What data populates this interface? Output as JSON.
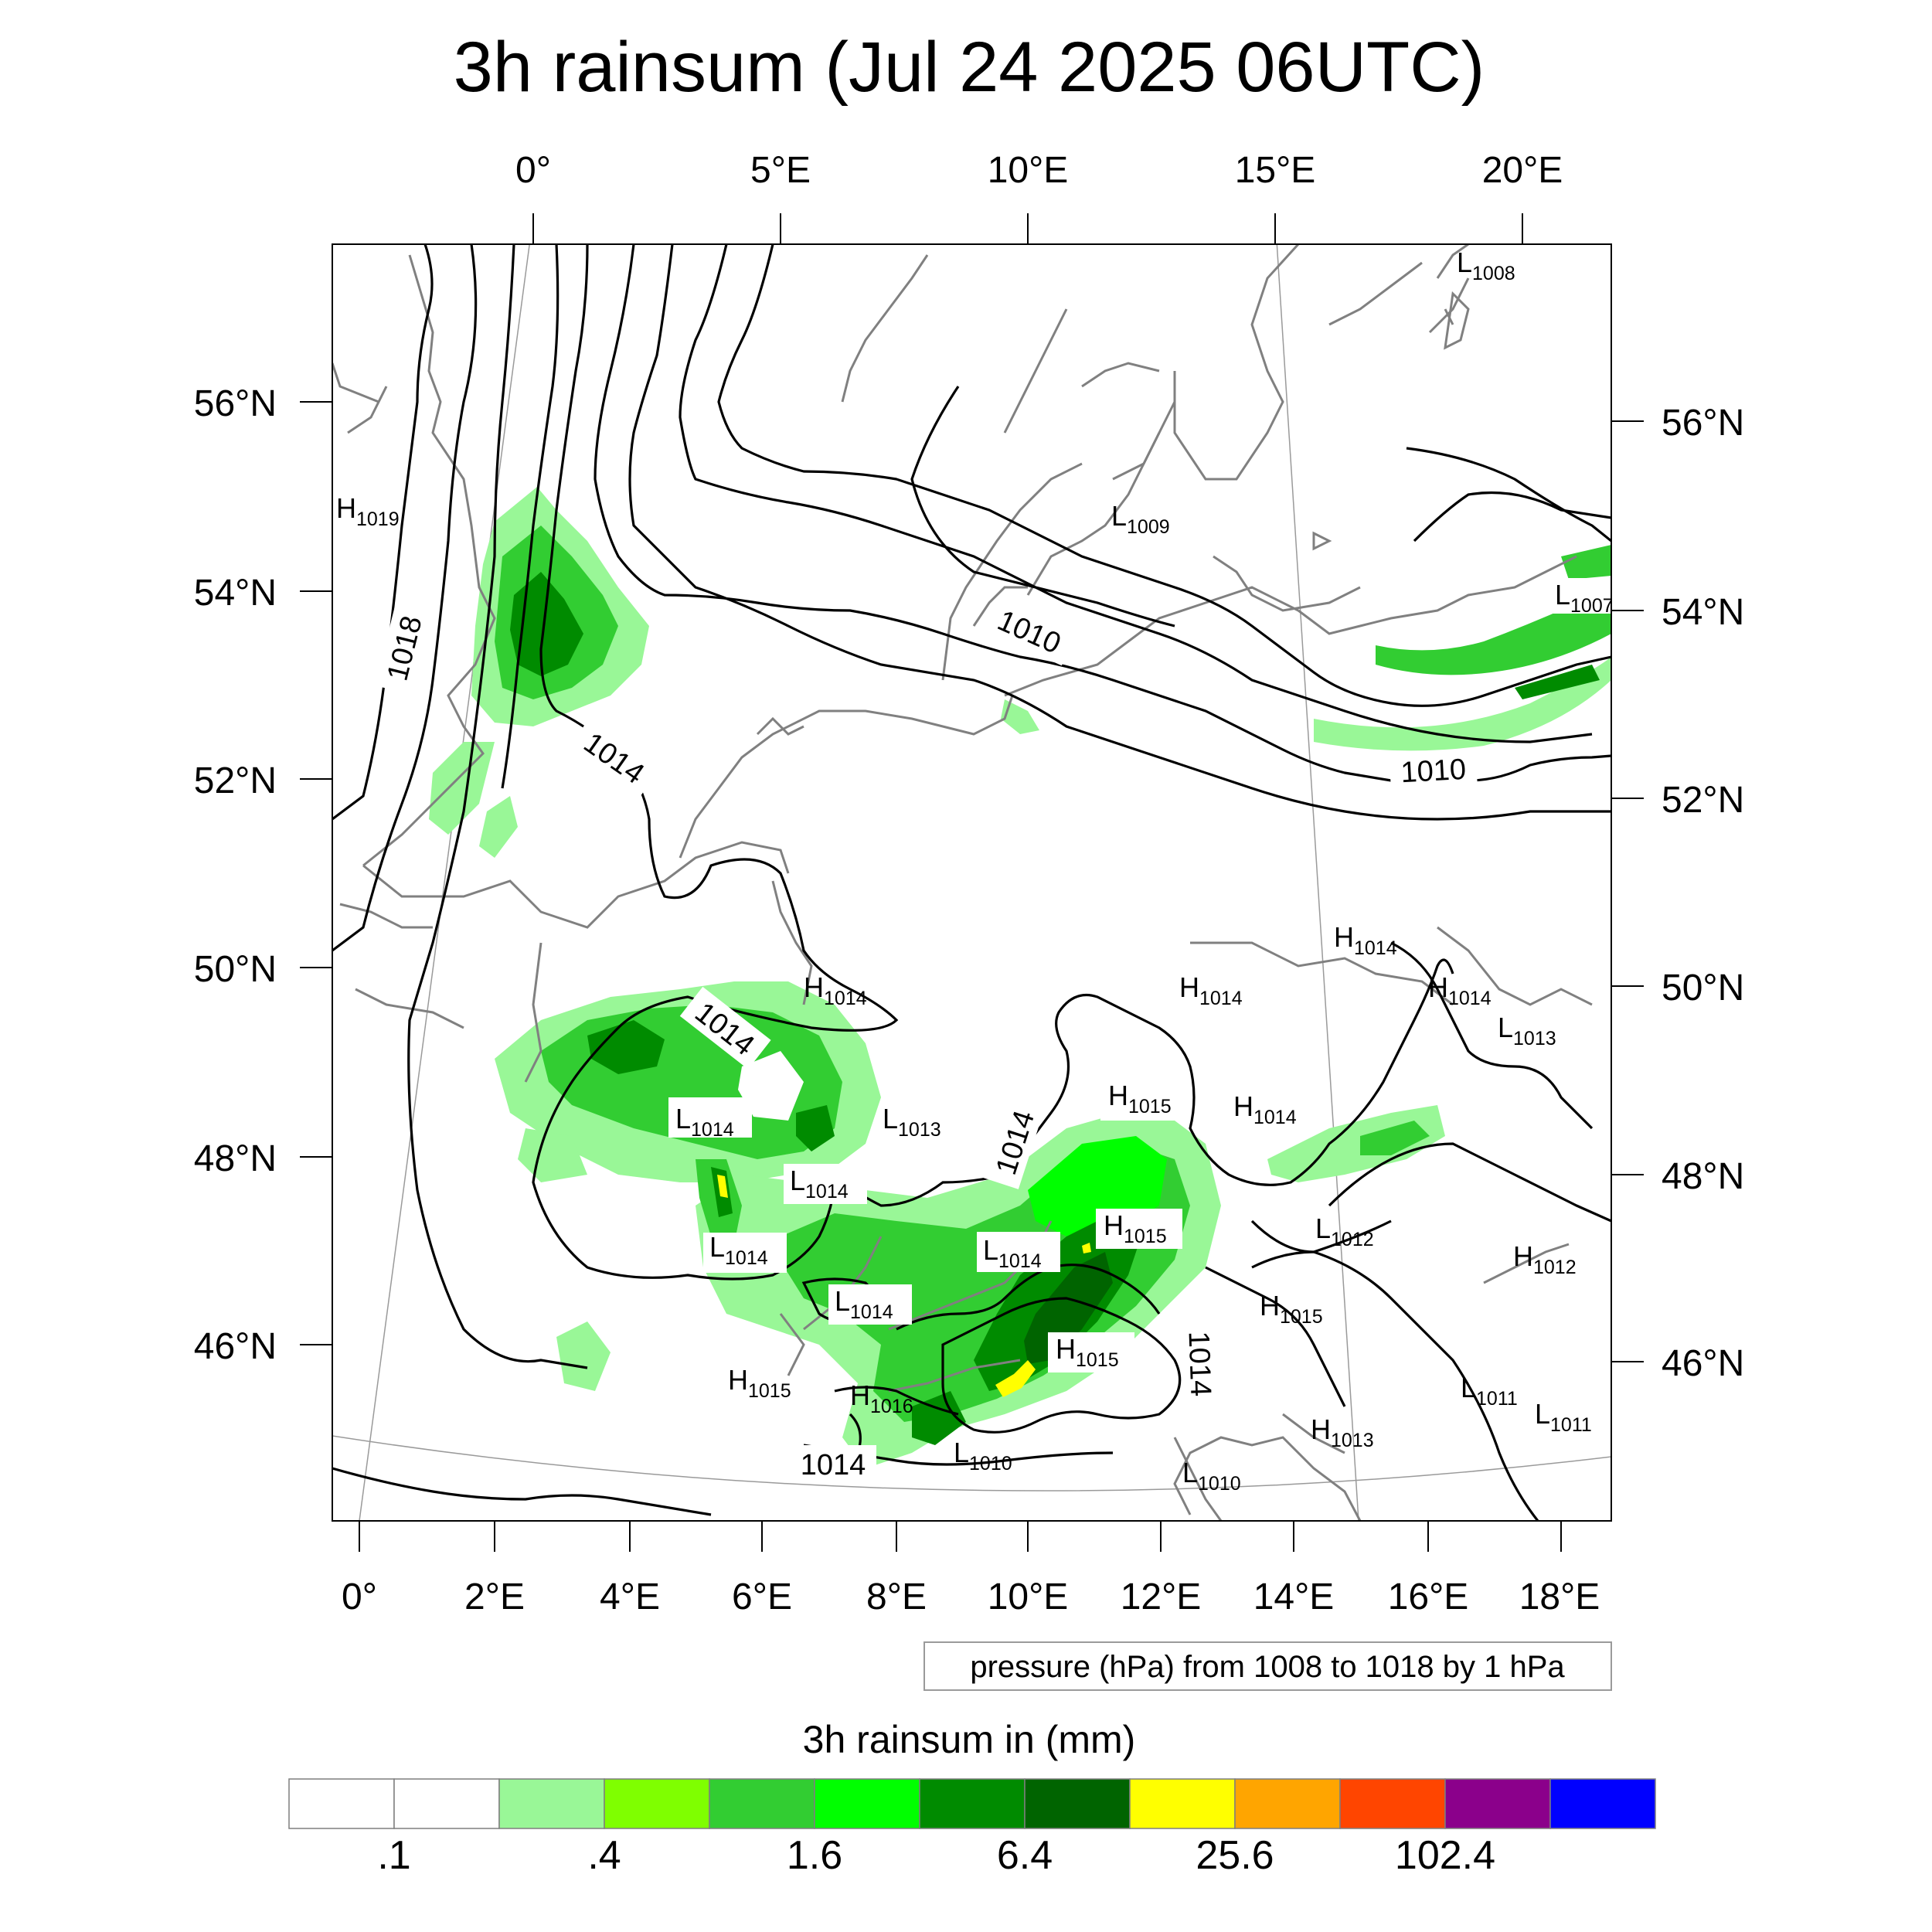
{
  "title": "3h rainsum (Jul 24 2025 06UTC)",
  "top_lon_labels": [
    "0°",
    "5°E",
    "10°E",
    "15°E",
    "20°E"
  ],
  "bottom_lon_labels": [
    "0°",
    "2°E",
    "4°E",
    "6°E",
    "8°E",
    "10°E",
    "12°E",
    "14°E",
    "16°E",
    "18°E"
  ],
  "left_lat_labels": [
    "56°N",
    "54°N",
    "52°N",
    "50°N",
    "48°N",
    "46°N"
  ],
  "right_lat_labels": [
    "56°N",
    "54°N",
    "52°N",
    "50°N",
    "48°N",
    "46°N"
  ],
  "contour_labels": [
    "1018",
    "1014",
    "1010",
    "1010",
    "1014",
    "1014",
    "1014",
    "1014"
  ],
  "pressure_centers": [
    {
      "sym": "L",
      "val": "1008"
    },
    {
      "sym": "H",
      "val": "1019"
    },
    {
      "sym": "L",
      "val": "1009"
    },
    {
      "sym": "L",
      "val": "1007"
    },
    {
      "sym": "H",
      "val": "1014"
    },
    {
      "sym": "H",
      "val": "1014"
    },
    {
      "sym": "L",
      "val": "1013"
    },
    {
      "sym": "H",
      "val": "1014"
    },
    {
      "sym": "H",
      "val": "1014"
    },
    {
      "sym": "H",
      "val": "1015"
    },
    {
      "sym": "L",
      "val": "1013"
    },
    {
      "sym": "H",
      "val": "1014"
    },
    {
      "sym": "L",
      "val": "1014"
    },
    {
      "sym": "L",
      "val": "1014"
    },
    {
      "sym": "L",
      "val": "1014"
    },
    {
      "sym": "H",
      "val": "1015"
    },
    {
      "sym": "L",
      "val": "1012"
    },
    {
      "sym": "L",
      "val": "1014"
    },
    {
      "sym": "H",
      "val": "1012"
    },
    {
      "sym": "L",
      "val": "1014"
    },
    {
      "sym": "H",
      "val": "1015"
    },
    {
      "sym": "H",
      "val": "1015"
    },
    {
      "sym": "H",
      "val": "1015"
    },
    {
      "sym": "H",
      "val": "1016"
    },
    {
      "sym": "L",
      "val": "1011"
    },
    {
      "sym": "L",
      "val": "1011"
    },
    {
      "sym": "H",
      "val": "1013"
    },
    {
      "sym": "L",
      "val": "1010"
    },
    {
      "sym": "L",
      "val": "1010"
    }
  ],
  "note": "pressure (hPa) from 1008 to 1018 by 1 hPa",
  "colorbar": {
    "title": "3h rainsum in (mm)",
    "colors": [
      "#ffffff",
      "#ffffff",
      "#99f797",
      "#7fff00",
      "#32cd32",
      "#00ff00",
      "#008b00",
      "#006400",
      "#ffff00",
      "#ffa500",
      "#ff4500",
      "#8b008b",
      "#0000ff"
    ],
    "tick_labels": [
      ".1",
      ".4",
      "1.6",
      "6.4",
      "25.6",
      "102.4"
    ],
    "tick_values": [
      0.1,
      0.4,
      1.6,
      6.4,
      25.6,
      102.4
    ]
  }
}
